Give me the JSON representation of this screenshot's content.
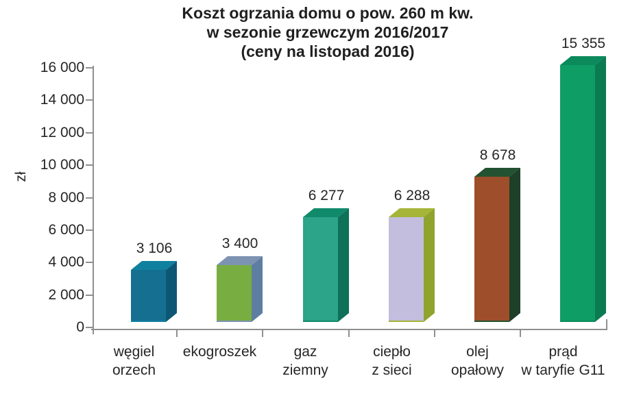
{
  "title": {
    "line1": "Koszt ogrzania domu o pow. 260 m kw.",
    "line2": "w sezonie grzewczym 2016/2017",
    "line3": "(ceny na listopad 2016)"
  },
  "y_axis_unit": "zł",
  "chart_data": {
    "type": "bar",
    "style": "3d",
    "title": "Koszt ogrzania domu o pow. 260 m kw. w sezonie grzewczym 2016/2017 (ceny na listopad 2016)",
    "categories": [
      "węgiel orzech",
      "ekogroszek",
      "gaz ziemny",
      "ciepło z sieci",
      "olej opałowy",
      "prąd w taryfie G11"
    ],
    "category_lines": [
      [
        "węgiel",
        "orzech"
      ],
      [
        "ekogroszek"
      ],
      [
        "gaz",
        "ziemny"
      ],
      [
        "ciepło",
        "z sieci"
      ],
      [
        "olej",
        "opałowy"
      ],
      [
        "prąd",
        "w taryfie G11"
      ]
    ],
    "values": [
      3106,
      3400,
      6277,
      6288,
      8678,
      15355
    ],
    "value_labels": [
      "3 106",
      "3 400",
      "6 277",
      "6 288",
      "8 678",
      "15 355"
    ],
    "xlabel": "",
    "ylabel": "zł",
    "ylim": [
      0,
      16000
    ],
    "ytick_step": 2000,
    "ytick_labels": [
      "0",
      "2 000",
      "4 000",
      "6 000",
      "8 000",
      "10 000",
      "12 000",
      "14 000",
      "16 000"
    ],
    "grid": false,
    "legend": false,
    "bar_colors": [
      {
        "front": "#156f91",
        "top": "#10809f",
        "side": "#0d5674"
      },
      {
        "front": "#78ad41",
        "top": "#7d93b2",
        "side": "#5e7ea1"
      },
      {
        "front": "#2ba489",
        "top": "#108a6b",
        "side": "#0e7158"
      },
      {
        "front": "#c3bedd",
        "top": "#a6b438",
        "side": "#90a32d"
      },
      {
        "front": "#9e4e2a",
        "top": "#225231",
        "side": "#1e3f28"
      },
      {
        "front": "#0f9d66",
        "top": "#0b8a5c",
        "side": "#0b7b51"
      }
    ],
    "axis_color": "#8f8f8f",
    "text_color": "#262626"
  }
}
